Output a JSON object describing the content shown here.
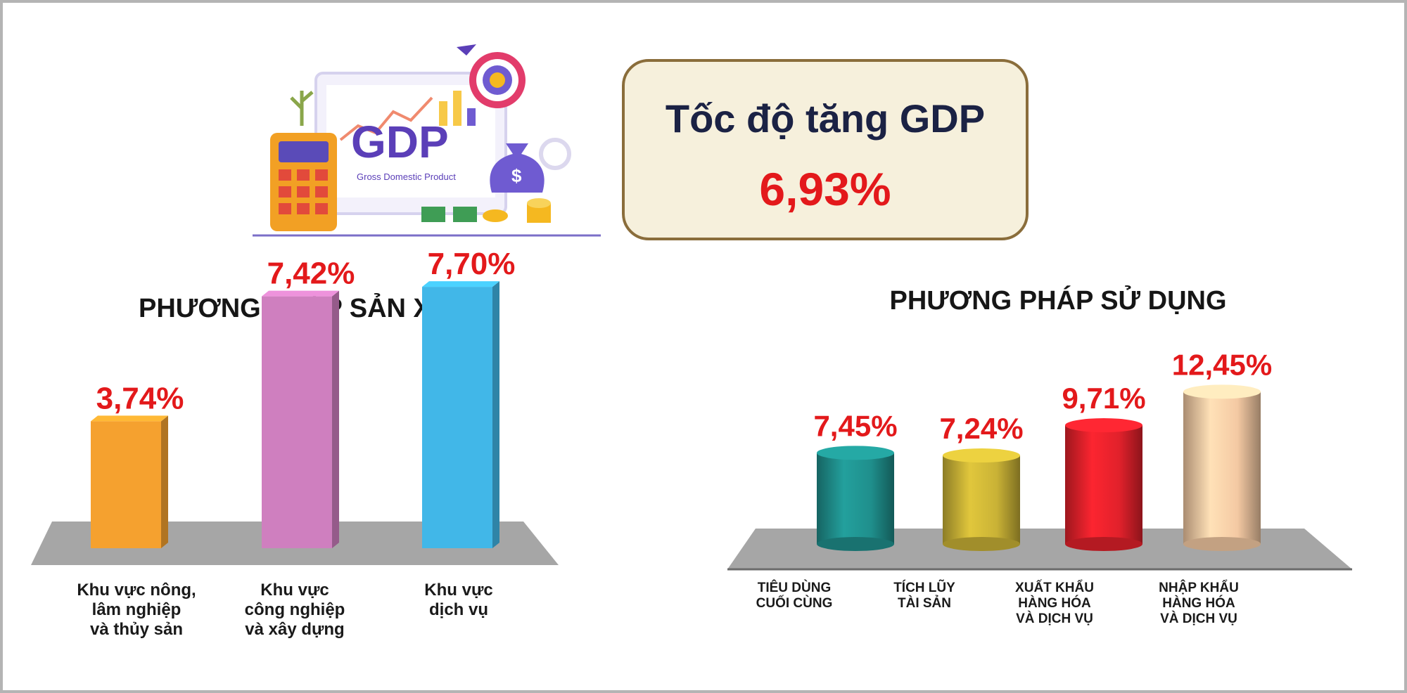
{
  "header": {
    "illustration": {
      "logo_text": "GDP",
      "logo_subtitle": "Gross Domestic Product",
      "icons": [
        "calculator-icon",
        "money-bag-icon",
        "target-icon",
        "coins-icon",
        "plant-icon",
        "gear-icon",
        "flag-icon"
      ]
    },
    "gdp_box": {
      "title": "Tốc độ tăng GDP",
      "value": "6,93%"
    }
  },
  "colors": {
    "value_red": "#e3191b",
    "box_border": "#8a6d3b",
    "box_fill": "#f6f0dc",
    "floor_gray": "#a6a6a6"
  },
  "chart_data": [
    {
      "type": "bar",
      "title": "PHƯƠNG PHÁP SẢN XUẤT",
      "categories": [
        [
          "Khu vực nông,",
          "lâm nghiệp",
          "và thủy sản"
        ],
        [
          "Khu vực",
          "công nghiệp",
          "và xây dựng"
        ],
        [
          "Khu vực",
          "dịch vụ"
        ]
      ],
      "values": [
        3.74,
        7.42,
        7.7
      ],
      "value_labels": [
        "3,74%",
        "7,42%",
        "7,70%"
      ],
      "colors": [
        "#f5a12f",
        "#cf7fbf",
        "#41b7e8"
      ],
      "unit": "%",
      "style": "3d-box"
    },
    {
      "type": "bar",
      "title": "PHƯƠNG PHÁP SỬ DỤNG",
      "categories": [
        [
          "TIÊU DÙNG",
          "CUỐI CÙNG"
        ],
        [
          "TÍCH LŨY",
          "TÀI SẢN"
        ],
        [
          "XUẤT KHẨU",
          "HÀNG HÓA",
          "VÀ DỊCH VỤ"
        ],
        [
          "NHẬP KHẨU",
          "HÀNG HÓA",
          "VÀ DỊCH VỤ"
        ]
      ],
      "values": [
        7.45,
        7.24,
        9.71,
        12.45
      ],
      "value_labels": [
        "7,45%",
        "7,24%",
        "9,71%",
        "12,45%"
      ],
      "colors": [
        "#1f8f8c",
        "#c9b236",
        "#e1212b",
        "#f4c9a3"
      ],
      "unit": "%",
      "style": "3d-cylinder"
    }
  ]
}
